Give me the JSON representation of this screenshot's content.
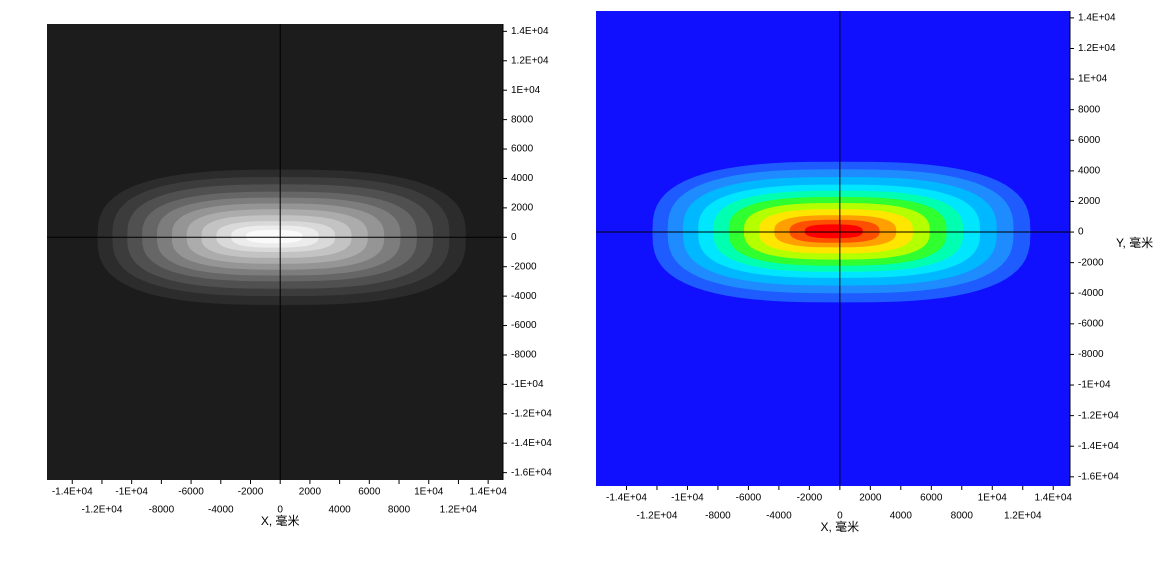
{
  "chart_data": [
    {
      "type": "contour",
      "xlabel": "X, 毫米",
      "background": "#1c1c1c",
      "crosshair": true,
      "xlim": [
        -15700,
        15000
      ],
      "ylim": [
        -16500,
        14500
      ],
      "xticks": [
        {
          "value": -14000,
          "label": "-1.4E+04"
        },
        {
          "value": -12000,
          "label": "-1.2E+04"
        },
        {
          "value": -10000,
          "label": "-1E+04"
        },
        -8000,
        -6000,
        -4000,
        -2000,
        0,
        2000,
        4000,
        6000,
        8000,
        {
          "value": 10000,
          "label": "1E+04"
        },
        {
          "value": 12000,
          "label": "1.2E+04"
        },
        {
          "value": 14000,
          "label": "1.4E+04"
        }
      ],
      "yticks": [
        {
          "value": 14000,
          "label": "1.4E+04"
        },
        {
          "value": 12000,
          "label": "1.2E+04"
        },
        {
          "value": 10000,
          "label": "1E+04"
        },
        8000,
        6000,
        4000,
        2000,
        0,
        -2000,
        -4000,
        -6000,
        -8000,
        {
          "value": -10000,
          "label": "-1E+04"
        },
        {
          "value": -12000,
          "label": "-1.2E+04"
        },
        {
          "value": -14000,
          "label": "-1.4E+04"
        },
        {
          "value": -16000,
          "label": "-1.6E+04"
        }
      ],
      "contours": [
        {
          "color": "#2c2c2c",
          "x": [
            -12300,
            12500
          ],
          "y": [
            -4600,
            4600
          ]
        },
        {
          "color": "#3c3c3c",
          "x": [
            -11300,
            11400
          ],
          "y": [
            -4000,
            4100
          ]
        },
        {
          "color": "#505050",
          "x": [
            -10300,
            10300
          ],
          "y": [
            -3500,
            3600
          ]
        },
        {
          "color": "#666666",
          "x": [
            -9300,
            9200
          ],
          "y": [
            -3000,
            3100
          ]
        },
        {
          "color": "#7d7d7d",
          "x": [
            -8300,
            8100
          ],
          "y": [
            -2600,
            2700
          ]
        },
        {
          "color": "#959595",
          "x": [
            -7300,
            7000
          ],
          "y": [
            -2200,
            2300
          ]
        },
        {
          "color": "#acacac",
          "x": [
            -6300,
            5900
          ],
          "y": [
            -1800,
            1900
          ]
        },
        {
          "color": "#c3c3c3",
          "x": [
            -5300,
            4800
          ],
          "y": [
            -1400,
            1500
          ]
        },
        {
          "color": "#d9d9d9",
          "x": [
            -4300,
            3700
          ],
          "y": [
            -1000,
            1100
          ]
        },
        {
          "color": "#ececec",
          "x": [
            -3300,
            2600
          ],
          "y": [
            -700,
            800
          ]
        },
        {
          "color": "#fafafa",
          "x": [
            -2300,
            1500
          ],
          "y": [
            -400,
            500
          ]
        }
      ]
    },
    {
      "type": "contour",
      "xlabel": "X, 毫米",
      "ylabel": "Y, 毫米",
      "background": "#1010ff",
      "crosshair": true,
      "xlim": [
        -16000,
        15100
      ],
      "ylim": [
        -16600,
        14450
      ],
      "xticks": [
        {
          "value": -14000,
          "label": "-1.4E+04"
        },
        {
          "value": -12000,
          "label": "-1.2E+04"
        },
        {
          "value": -10000,
          "label": "-1E+04"
        },
        -8000,
        -6000,
        -4000,
        -2000,
        0,
        2000,
        4000,
        6000,
        8000,
        {
          "value": 10000,
          "label": "1E+04"
        },
        {
          "value": 12000,
          "label": "1.2E+04"
        },
        {
          "value": 14000,
          "label": "1.4E+04"
        }
      ],
      "yticks": [
        {
          "value": 14000,
          "label": "1.4E+04"
        },
        {
          "value": 12000,
          "label": "1.2E+04"
        },
        {
          "value": 10000,
          "label": "1E+04"
        },
        8000,
        6000,
        4000,
        2000,
        0,
        -2000,
        -4000,
        -6000,
        -8000,
        {
          "value": -10000,
          "label": "-1E+04"
        },
        {
          "value": -12000,
          "label": "-1.2E+04"
        },
        {
          "value": -14000,
          "label": "-1.4E+04"
        },
        {
          "value": -16000,
          "label": "-1.6E+04"
        }
      ],
      "contours": [
        {
          "color": "#1e5cff",
          "x": [
            -12300,
            12500
          ],
          "y": [
            -4600,
            4600
          ]
        },
        {
          "color": "#1e8cff",
          "x": [
            -11300,
            11400
          ],
          "y": [
            -4000,
            4100
          ]
        },
        {
          "color": "#00b8ff",
          "x": [
            -10300,
            10300
          ],
          "y": [
            -3500,
            3600
          ]
        },
        {
          "color": "#00e6ff",
          "x": [
            -9300,
            9200
          ],
          "y": [
            -3000,
            3100
          ]
        },
        {
          "color": "#00ffb0",
          "x": [
            -8300,
            8100
          ],
          "y": [
            -2600,
            2700
          ]
        },
        {
          "color": "#30ff30",
          "x": [
            -7300,
            7000
          ],
          "y": [
            -2200,
            2300
          ]
        },
        {
          "color": "#b4ff00",
          "x": [
            -6300,
            5900
          ],
          "y": [
            -1800,
            1900
          ]
        },
        {
          "color": "#ffe600",
          "x": [
            -5300,
            4800
          ],
          "y": [
            -1400,
            1500
          ]
        },
        {
          "color": "#ffa000",
          "x": [
            -4300,
            3700
          ],
          "y": [
            -1000,
            1100
          ]
        },
        {
          "color": "#ff5000",
          "x": [
            -3300,
            2600
          ],
          "y": [
            -700,
            800
          ]
        },
        {
          "color": "#ff0000",
          "x": [
            -2300,
            1500
          ],
          "y": [
            -400,
            500
          ]
        }
      ]
    }
  ]
}
